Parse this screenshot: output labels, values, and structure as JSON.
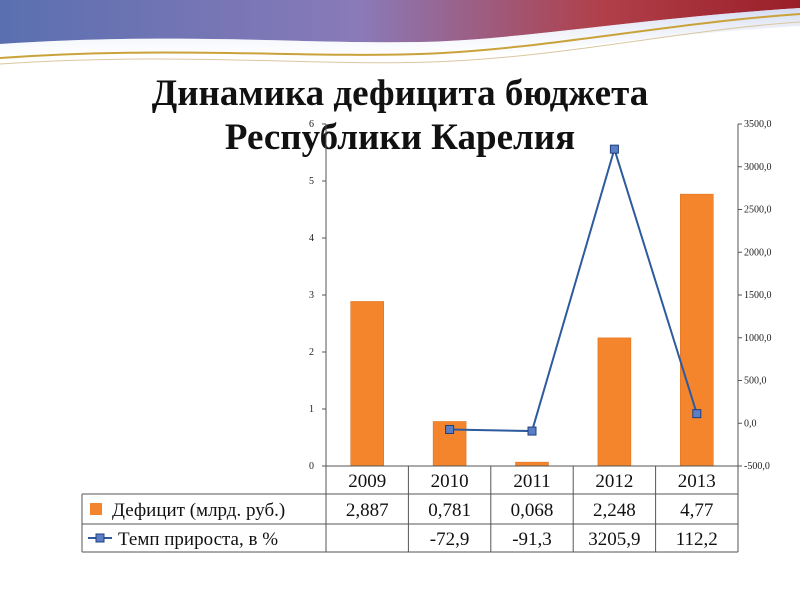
{
  "slide": {
    "title_line1": "Динамика дефицита бюджета",
    "title_line2": "Республики Карелия"
  },
  "chart_data": {
    "type": "bar",
    "categories": [
      "2009",
      "2010",
      "2011",
      "2012",
      "2013"
    ],
    "series": [
      {
        "name": "Дефицит  (млрд. руб.)",
        "type": "bar",
        "axis": "left",
        "color": "#F4852C",
        "values": [
          2.887,
          0.781,
          0.068,
          2.248,
          4.77
        ],
        "table_labels": [
          "2,887",
          "0,781",
          "0,068",
          "2,248",
          "4,77"
        ]
      },
      {
        "name": "Темп прироста, в %",
        "type": "line",
        "axis": "right",
        "color": "#2E5A9E",
        "marker_color": "#5B7FC7",
        "values": [
          null,
          -72.9,
          -91.3,
          3205.9,
          112.2
        ],
        "table_labels": [
          "",
          "-72,9",
          "-91,3",
          "3205,9",
          "112,2"
        ]
      }
    ],
    "y_left": {
      "ylim": [
        0,
        6
      ],
      "ticks": [
        "0",
        "1",
        "2",
        "3",
        "4",
        "5",
        "6"
      ]
    },
    "y_right": {
      "ylim": [
        -500,
        3500
      ],
      "ticks": [
        "-500,0",
        "0,0",
        "500,0",
        "1000,0",
        "1500,0",
        "2000,0",
        "2500,0",
        "3000,0",
        "3500,0"
      ]
    },
    "grid": false,
    "legend": "data-table-below"
  }
}
